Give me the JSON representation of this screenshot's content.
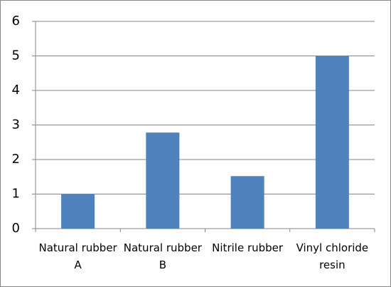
{
  "chart_data": {
    "type": "bar",
    "categories": [
      "Natural rubber A",
      "Natural rubber B",
      "Nitrile rubber",
      "Vinyl chloride resin"
    ],
    "values": [
      1,
      2.78,
      1.52,
      5
    ],
    "color": "#4f81bd",
    "ylim": [
      0,
      6
    ],
    "yticks": [
      0,
      1,
      2,
      3,
      4,
      5,
      6
    ],
    "grid": true
  }
}
